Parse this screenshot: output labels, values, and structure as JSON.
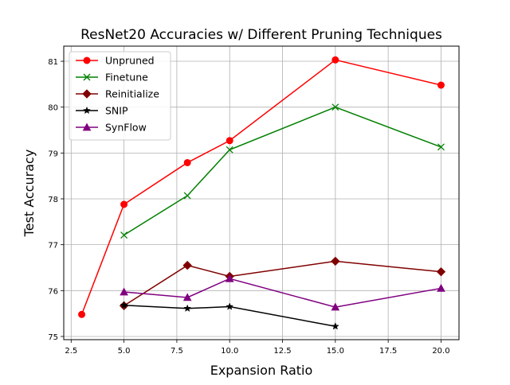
{
  "chart_data": {
    "type": "line",
    "title": "ResNet20 Accuracies w/ Different Pruning Techniques",
    "xlabel": "Expansion Ratio",
    "ylabel": "Test Accuracy",
    "xlim": [
      2.15,
      20.85
    ],
    "ylim": [
      74.93,
      81.33
    ],
    "xticks": [
      "2.5",
      "5.0",
      "7.5",
      "10.0",
      "12.5",
      "15.0",
      "17.5",
      "20.0"
    ],
    "xtick_values": [
      2.5,
      5.0,
      7.5,
      10.0,
      12.5,
      15.0,
      17.5,
      20.0
    ],
    "yticks": [
      "75",
      "76",
      "77",
      "78",
      "79",
      "80",
      "81"
    ],
    "ytick_values": [
      75,
      76,
      77,
      78,
      79,
      80,
      81
    ],
    "grid": true,
    "legend_position": "top-left",
    "series": [
      {
        "name": "Unpruned",
        "color": "#ff0000",
        "marker": "circle",
        "x": [
          3,
          5,
          8,
          10,
          15,
          20
        ],
        "y": [
          75.48,
          77.88,
          78.79,
          79.27,
          81.03,
          80.48
        ]
      },
      {
        "name": "Finetune",
        "color": "#008000",
        "marker": "x",
        "x": [
          5,
          8,
          10,
          15,
          20
        ],
        "y": [
          77.21,
          78.07,
          79.07,
          80.0,
          79.13
        ]
      },
      {
        "name": "Reinitialize",
        "color": "#800000",
        "marker": "diamond",
        "x": [
          5,
          8,
          10,
          15,
          20
        ],
        "y": [
          75.67,
          76.55,
          76.31,
          76.64,
          76.41
        ]
      },
      {
        "name": "SNIP",
        "color": "#000000",
        "marker": "star",
        "x": [
          5,
          8,
          10,
          15
        ],
        "y": [
          75.68,
          75.61,
          75.65,
          75.22
        ]
      },
      {
        "name": "SynFlow",
        "color": "#800080",
        "marker": "triangle",
        "x": [
          5,
          8,
          10,
          15,
          20
        ],
        "y": [
          75.97,
          75.85,
          76.26,
          75.64,
          76.05
        ]
      }
    ]
  }
}
